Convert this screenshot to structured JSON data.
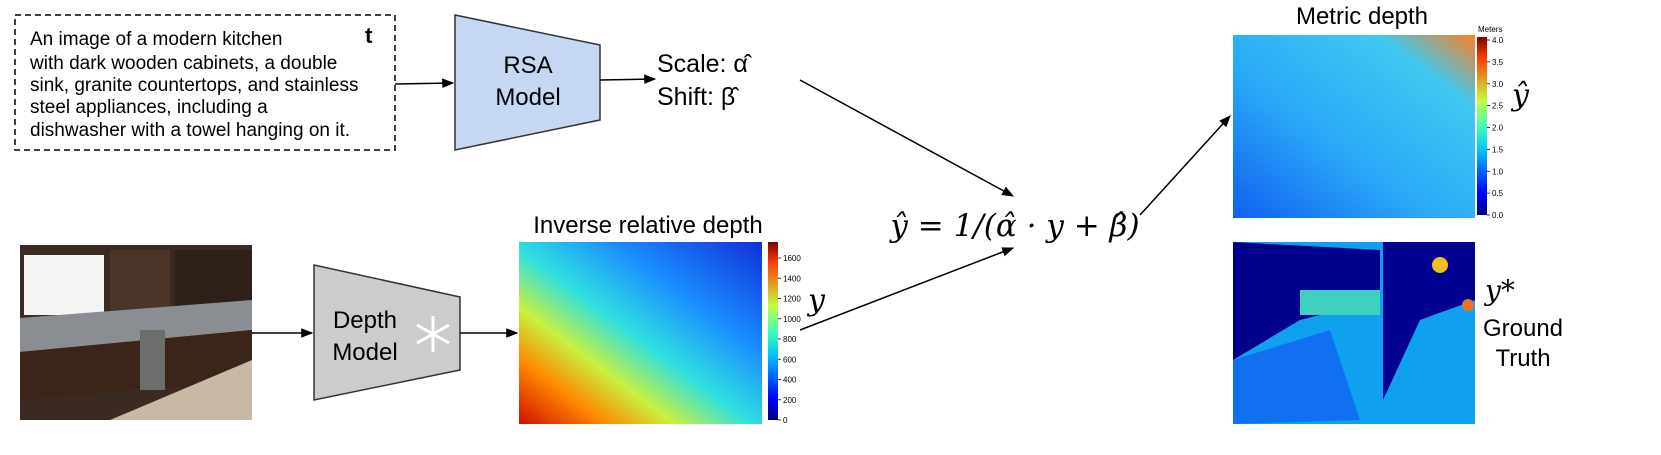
{
  "text_prompt": {
    "lines": [
      "An image of a modern kitchen",
      "with dark wooden cabinets, a double",
      "sink, granite countertops, and stainless",
      "steel appliances, including a",
      "dishwasher with a towel hanging on it."
    ],
    "symbol": "t"
  },
  "rsa_model": {
    "label_lines": [
      "RSA",
      "Model"
    ]
  },
  "outputs": {
    "scale": "Scale: α̂",
    "shift": "Shift: β̂"
  },
  "depth_model": {
    "label_lines": [
      "Depth",
      "Model"
    ]
  },
  "relative_depth": {
    "title": "Inverse relative depth",
    "symbol": "y",
    "colorbar_ticks": [
      0,
      200,
      400,
      600,
      800,
      1000,
      1200,
      1400,
      1600
    ]
  },
  "formula": "ŷ = 1/(α̂ · y + β̂)",
  "metric_depth": {
    "title": "Metric depth",
    "unit": "Meters",
    "symbol": "ŷ",
    "colorbar_ticks": [
      "0.0",
      "0.5",
      "1.0",
      "1.5",
      "2.0",
      "2.5",
      "3.0",
      "3.5",
      "4.0"
    ]
  },
  "ground_truth": {
    "symbol": "y*",
    "label_lines": [
      "Ground",
      "Truth"
    ]
  }
}
